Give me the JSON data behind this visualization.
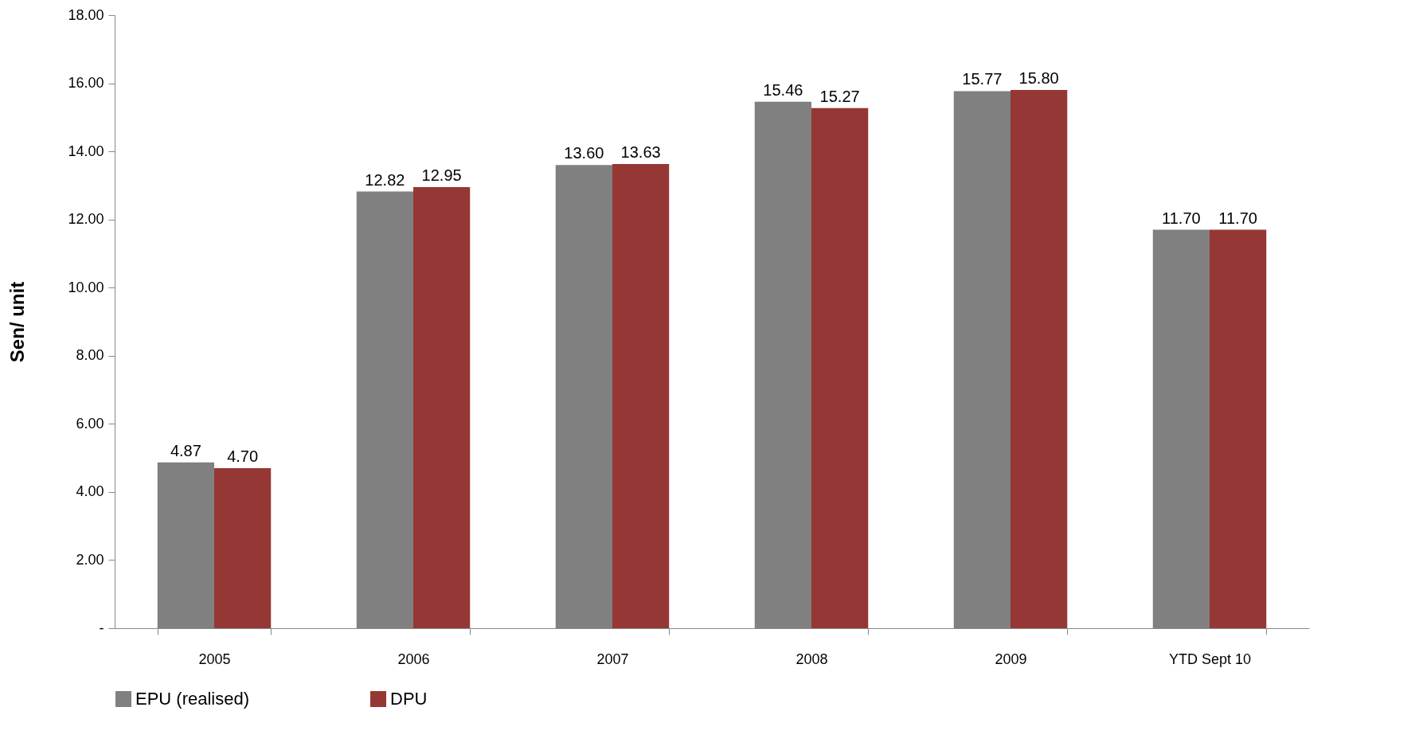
{
  "chart_data": {
    "type": "bar",
    "ylabel": "Sen/ unit",
    "categories": [
      "2005",
      "2006",
      "2007",
      "2008",
      "2009",
      "YTD Sept 10"
    ],
    "series": [
      {
        "name": "EPU (realised)",
        "color": "#808080",
        "values": [
          4.87,
          12.82,
          13.6,
          15.46,
          15.77,
          11.7
        ],
        "value_labels": [
          "4.87",
          "12.82",
          "13.60",
          "15.46",
          "15.77",
          "11.70"
        ]
      },
      {
        "name": "DPU",
        "color": "#953735",
        "values": [
          4.7,
          12.95,
          13.63,
          15.27,
          15.8,
          11.7
        ],
        "value_labels": [
          "4.70",
          "12.95",
          "13.63",
          "15.27",
          "15.80",
          "11.70"
        ]
      }
    ],
    "ylim": [
      0,
      18
    ],
    "yticks": [
      {
        "value": 0,
        "label": "-"
      },
      {
        "value": 2,
        "label": "2.00"
      },
      {
        "value": 4,
        "label": "4.00"
      },
      {
        "value": 6,
        "label": "6.00"
      },
      {
        "value": 8,
        "label": "8.00"
      },
      {
        "value": 10,
        "label": "10.00"
      },
      {
        "value": 12,
        "label": "12.00"
      },
      {
        "value": 14,
        "label": "14.00"
      },
      {
        "value": 16,
        "label": "16.00"
      },
      {
        "value": 18,
        "label": "18.00"
      }
    ],
    "grid": false,
    "legend": "bottom"
  }
}
